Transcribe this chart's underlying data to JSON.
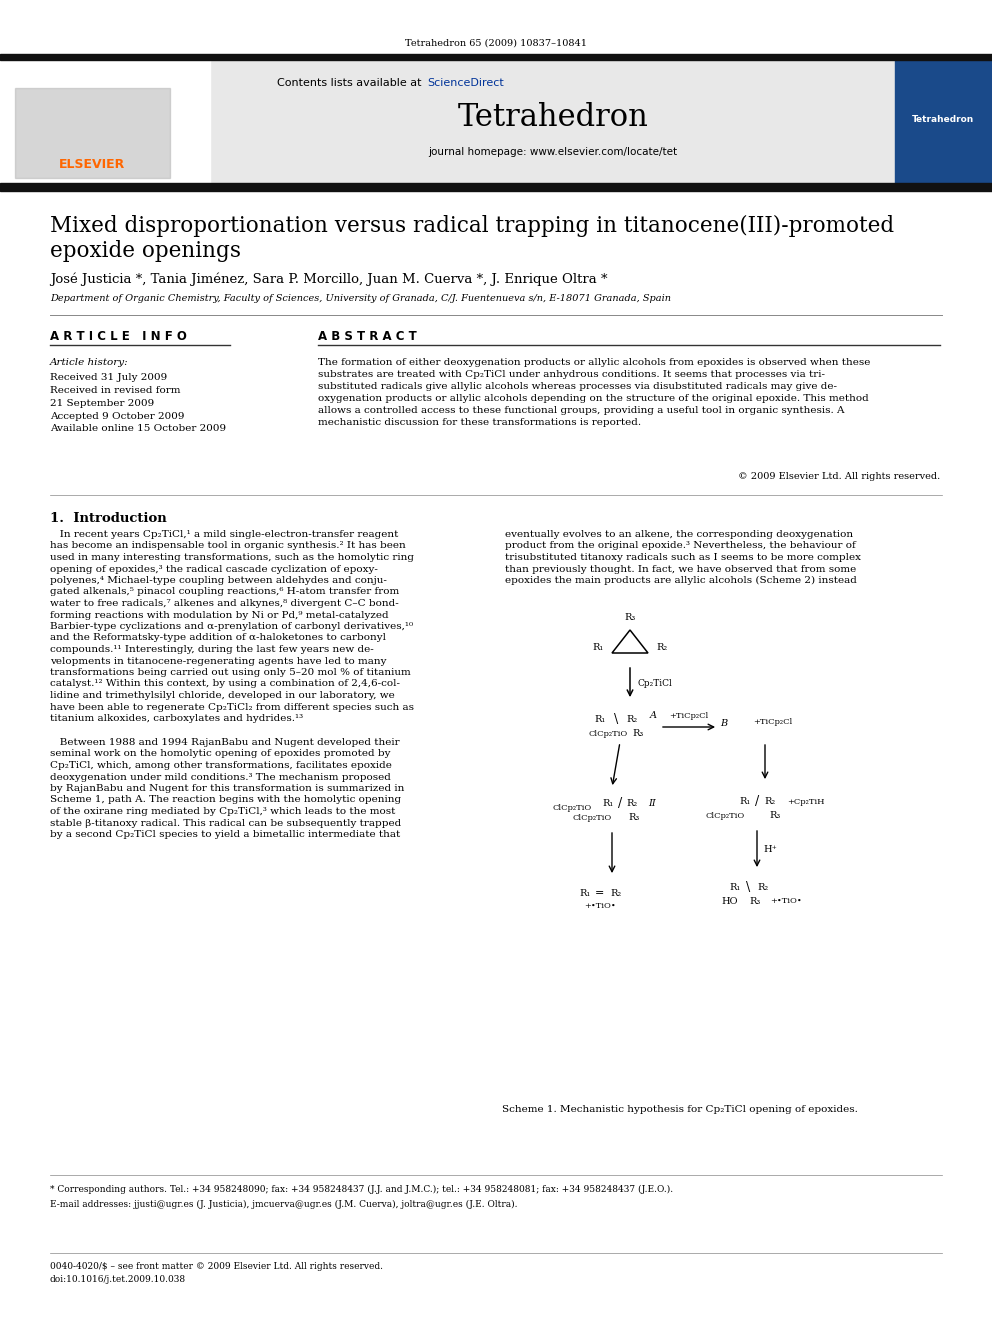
{
  "journal_line": "Tetrahedron 65 (2009) 10837–10841",
  "contents_line": "Contents lists available at ScienceDirect",
  "sciencedirect_color": "#003399",
  "journal_name": "Tetrahedron",
  "homepage_line": "journal homepage: www.elsevier.com/locate/tet",
  "elsevier_color": "#FF6600",
  "elsevier_text": "ELSEVIER",
  "article_title": "Mixed disproportionation versus radical trapping in titanocene(III)-promoted\nepoxide openings",
  "authors": "José Justicia *, Tania Jiménez, Sara P. Morcillo, Juan M. Cuerva *, J. Enrique Oltra *",
  "affiliation": "Department of Organic Chemistry, Faculty of Sciences, University of Granada, C/J. Fuentenueva s/n, E-18071 Granada, Spain",
  "article_info_title": "A R T I C L E   I N F O",
  "abstract_title": "A B S T R A C T",
  "article_history_label": "Article history:",
  "dates_text": "Received 31 July 2009\nReceived in revised form\n21 September 2009\nAccepted 9 October 2009\nAvailable online 15 October 2009",
  "abstract_text": "The formation of either deoxygenation products or allylic alcohols from epoxides is observed when these\nsubstrates are treated with Cp₂TiCl under anhydrous conditions. It seems that processes via tri-\nsubstituted radicals give allylic alcohols whereas processes via disubstituted radicals may give de-\noxygenation products or allylic alcohols depending on the structure of the original epoxide. This method\nallows a controlled access to these functional groups, providing a useful tool in organic synthesis. A\nmechanistic discussion for these transformations is reported.",
  "copyright": "© 2009 Elsevier Ltd. All rights reserved.",
  "intro_title": "1.  Introduction",
  "intro_col1_p1_lines": [
    "   In recent years Cp₂TiCl,¹ a mild single-electron-transfer reagent",
    "has become an indispensable tool in organic synthesis.² It has been",
    "used in many interesting transformations, such as the homolytic ring",
    "opening of epoxides,³ the radical cascade cyclization of epoxy-",
    "polyenes,⁴ Michael-type coupling between aldehydes and conju-",
    "gated alkenals,⁵ pinacol coupling reactions,⁶ H-atom transfer from",
    "water to free radicals,⁷ alkenes and alkynes,⁸ divergent C–C bond-",
    "forming reactions with modulation by Ni or Pd,⁹ metal-catalyzed",
    "Barbier-type cyclizations and α-prenylation of carbonyl derivatives,¹⁰",
    "and the Reformatsky-type addition of α-haloketones to carbonyl",
    "compounds.¹¹ Interestingly, during the last few years new de-",
    "velopments in titanocene-regenerating agents have led to many",
    "transformations being carried out using only 5–20 mol % of titanium",
    "catalyst.¹² Within this context, by using a combination of 2,4,6-col-",
    "lidine and trimethylsilyl chloride, developed in our laboratory, we",
    "have been able to regenerate Cp₂TiCl₂ from different species such as",
    "titanium alkoxides, carboxylates and hydrides.¹³"
  ],
  "intro_col1_p2_lines": [
    "   Between 1988 and 1994 RajanBabu and Nugent developed their",
    "seminal work on the homolytic opening of epoxides promoted by",
    "Cp₂TiCl, which, among other transformations, facilitates epoxide",
    "deoxygenation under mild conditions.³ The mechanism proposed",
    "by RajanBabu and Nugent for this transformation is summarized in",
    "Scheme 1, path A. The reaction begins with the homolytic opening",
    "of the oxirane ring mediated by Cp₂TiCl,³ which leads to the most",
    "stable β-titanoxy radical. This radical can be subsequently trapped",
    "by a second Cp₂TiCl species to yield a bimetallic intermediate that"
  ],
  "intro_col2_lines": [
    "eventually evolves to an alkene, the corresponding deoxygenation",
    "product from the original epoxide.³ Nevertheless, the behaviour of",
    "trisubstituted titanoxy radicals such as I seems to be more complex",
    "than previously thought. In fact, we have observed that from some",
    "epoxides the main products are allylic alcohols (Scheme 2) instead"
  ],
  "footnote_star": "* Corresponding authors. Tel.: +34 958248090; fax: +34 958248437 (J.J. and J.M.C.); tel.: +34 958248081; fax: +34 958248437 (J.E.O.).",
  "footnote_email": "E-mail addresses: jjusti@ugr.es (J. Justicia), jmcuerva@ugr.es (J.M. Cuerva), joltra@ugr.es (J.E. Oltra).",
  "footnote_bottom1": "0040-4020/$ – see front matter © 2009 Elsevier Ltd. All rights reserved.",
  "footnote_bottom2": "doi:10.1016/j.tet.2009.10.038",
  "scheme_caption": "Scheme 1. Mechanistic hypothesis for Cp₂TiCl opening of epoxides.",
  "bg_color": "#ffffff",
  "text_color": "#000000",
  "header_bg": "#e8e8e8",
  "blue_color": "#003399",
  "dark_bar_color": "#1a1a1a"
}
